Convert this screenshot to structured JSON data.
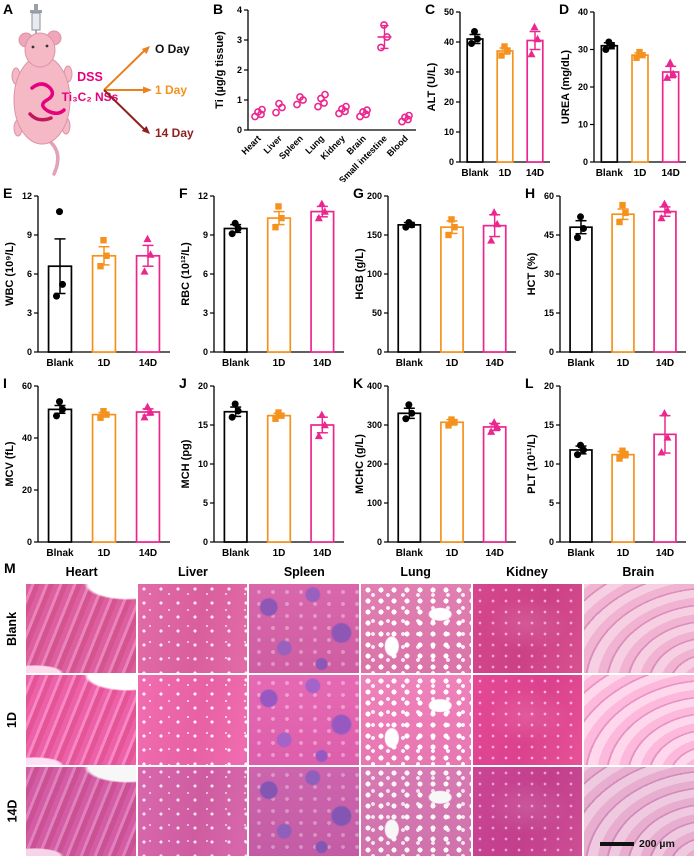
{
  "colors": {
    "magenta": "#E6007E",
    "blank": "#000000",
    "d1": "#F5921E",
    "d14": "#EC268F"
  },
  "groups": {
    "labels": [
      "Blank",
      "1D",
      "14D"
    ],
    "colors": [
      "#000000",
      "#F5921E",
      "#EC268F"
    ],
    "markers": [
      "circle",
      "square",
      "triangle"
    ]
  },
  "panelA": {
    "label": "A",
    "dss_label": "DSS",
    "nss_label": "Ti₃C₂ NSs",
    "arrow_colors": [
      "#E8821E",
      "#E8821E",
      "#8E1F1F"
    ],
    "timepoints": [
      {
        "label": "O Day",
        "color": "#111111"
      },
      {
        "label": "1 Day",
        "color": "#F5921E"
      },
      {
        "label": "14 Day",
        "color": "#8E1F1F"
      }
    ]
  },
  "chart_data": [
    {
      "letter": "B",
      "type": "scatter",
      "ylabel": "Ti (µg/g tissue)",
      "ylim": [
        0,
        4
      ],
      "yticks": [
        0,
        1,
        2,
        3,
        4
      ],
      "rotate_x": true,
      "categories": [
        "Heart",
        "Liver",
        "Spleen",
        "Lung",
        "Kidney",
        "Brain",
        "Small intestine",
        "Blood"
      ],
      "points": [
        [
          0.45,
          0.52,
          0.6,
          0.68
        ],
        [
          0.58,
          0.75,
          0.88
        ],
        [
          0.85,
          1.0,
          1.1
        ],
        [
          0.78,
          0.9,
          1.05,
          1.18
        ],
        [
          0.55,
          0.62,
          0.7,
          0.78
        ],
        [
          0.45,
          0.52,
          0.6,
          0.66
        ],
        [
          2.75,
          3.1,
          3.5
        ],
        [
          0.28,
          0.35,
          0.42,
          0.48
        ]
      ],
      "marker": "open-circle",
      "color": "#EC268F",
      "mean_lines": [
        {
          "index": 6,
          "mean": 3.1,
          "err": 0.38
        }
      ]
    },
    {
      "letter": "C",
      "type": "bar",
      "ylabel": "ALT (U/L)",
      "ylim": [
        0,
        50
      ],
      "yticks": [
        0,
        10,
        20,
        30,
        40,
        50
      ],
      "categories": [
        "Blank",
        "1D",
        "14D"
      ],
      "means": [
        41,
        37,
        40.5
      ],
      "errors": [
        1.5,
        1,
        3
      ],
      "points": [
        [
          39.5,
          41,
          43.5
        ],
        [
          35.5,
          37,
          38.5
        ],
        [
          36,
          41,
          45
        ]
      ]
    },
    {
      "letter": "D",
      "type": "bar",
      "ylabel": "UREA (mg/dL)",
      "ylim": [
        0,
        40
      ],
      "yticks": [
        0,
        10,
        20,
        30,
        40
      ],
      "categories": [
        "Blank",
        "1D",
        "14D"
      ],
      "means": [
        31,
        28.5,
        24
      ],
      "errors": [
        0.8,
        0.6,
        1.5
      ],
      "points": [
        [
          30,
          31,
          32
        ],
        [
          27.8,
          28.5,
          29.3
        ],
        [
          22.5,
          23.5,
          26.5
        ]
      ]
    },
    {
      "letter": "E",
      "type": "bar",
      "ylabel": "WBC (10⁹/L)",
      "ylim": [
        0,
        12
      ],
      "yticks": [
        0,
        3,
        6,
        9,
        12
      ],
      "categories": [
        "Blank",
        "1D",
        "14D"
      ],
      "means": [
        6.6,
        7.4,
        7.4
      ],
      "errors": [
        2.1,
        0.7,
        0.8
      ],
      "points": [
        [
          4.3,
          5.2,
          10.8
        ],
        [
          6.6,
          7.4,
          8.6
        ],
        [
          6.2,
          7.5,
          8.7
        ]
      ]
    },
    {
      "letter": "F",
      "type": "bar",
      "ylabel": "RBC (10¹²/L)",
      "ylim": [
        0,
        12
      ],
      "yticks": [
        0,
        3,
        6,
        9,
        12
      ],
      "categories": [
        "Blank",
        "1D",
        "14D"
      ],
      "means": [
        9.5,
        10.3,
        10.8
      ],
      "errors": [
        0.3,
        0.5,
        0.4
      ],
      "points": [
        [
          9.1,
          9.5,
          9.9
        ],
        [
          9.6,
          10.3,
          11.2
        ],
        [
          10.3,
          10.8,
          11.4
        ]
      ]
    },
    {
      "letter": "G",
      "type": "bar",
      "ylabel": "HGB (g/L)",
      "ylim": [
        0,
        200
      ],
      "yticks": [
        0,
        50,
        100,
        150,
        200
      ],
      "categories": [
        "Blank",
        "1D",
        "14D"
      ],
      "means": [
        163,
        160,
        162
      ],
      "errors": [
        3,
        8,
        14
      ],
      "points": [
        [
          160,
          163,
          166
        ],
        [
          150,
          160,
          170
        ],
        [
          143,
          164,
          179
        ]
      ]
    },
    {
      "letter": "H",
      "type": "bar",
      "ylabel": "HCT (%)",
      "ylim": [
        0,
        60
      ],
      "yticks": [
        0,
        15,
        30,
        45,
        60
      ],
      "categories": [
        "Blank",
        "1D",
        "14D"
      ],
      "means": [
        48,
        53,
        54
      ],
      "errors": [
        2.5,
        2,
        1.8
      ],
      "points": [
        [
          44,
          47.5,
          52
        ],
        [
          50,
          53.5,
          56.5
        ],
        [
          51.5,
          54.5,
          57
        ]
      ]
    },
    {
      "letter": "I",
      "type": "bar",
      "ylabel": "MCV (fL)",
      "ylim": [
        0,
        60
      ],
      "yticks": [
        0,
        20,
        40,
        60
      ],
      "categories": [
        "Blnak",
        "1D",
        "14D"
      ],
      "means": [
        51,
        49,
        50
      ],
      "errors": [
        1.5,
        0.8,
        1.2
      ],
      "points": [
        [
          48.5,
          51,
          54
        ],
        [
          47.8,
          49,
          50.3
        ],
        [
          48,
          50,
          52
        ]
      ]
    },
    {
      "letter": "J",
      "type": "bar",
      "ylabel": "MCH (pg)",
      "ylim": [
        0,
        20
      ],
      "yticks": [
        0,
        5,
        10,
        15,
        20
      ],
      "categories": [
        "Blank",
        "1D",
        "14D"
      ],
      "means": [
        16.7,
        16.2,
        15
      ],
      "errors": [
        0.6,
        0.3,
        1
      ],
      "points": [
        [
          16,
          16.8,
          17.7
        ],
        [
          15.8,
          16.2,
          16.6
        ],
        [
          13.6,
          15,
          16.3
        ]
      ]
    },
    {
      "letter": "K",
      "type": "bar",
      "ylabel": "MCHC (g/L)",
      "ylim": [
        0,
        400
      ],
      "yticks": [
        0,
        100,
        200,
        300,
        400
      ],
      "categories": [
        "Blank",
        "1D",
        "14D"
      ],
      "means": [
        330,
        307,
        295
      ],
      "errors": [
        13,
        7,
        9
      ],
      "points": [
        [
          316,
          330,
          352
        ],
        [
          299,
          307,
          314
        ],
        [
          283,
          295,
          307
        ]
      ]
    },
    {
      "letter": "L",
      "type": "bar",
      "ylabel": "PLT (10¹¹/L)",
      "ylim": [
        0,
        20
      ],
      "yticks": [
        0,
        5,
        10,
        15,
        20
      ],
      "categories": [
        "Blank",
        "1D",
        "14D"
      ],
      "means": [
        11.8,
        11.2,
        13.8
      ],
      "errors": [
        0.5,
        0.4,
        2.4
      ],
      "points": [
        [
          11.2,
          11.8,
          12.4
        ],
        [
          10.7,
          11.2,
          11.7
        ],
        [
          11.5,
          13.4,
          16.5
        ]
      ]
    }
  ],
  "panelM": {
    "label": "M",
    "columns": [
      "Heart",
      "Liver",
      "Spleen",
      "Lung",
      "Kidney",
      "Brain"
    ],
    "rows": [
      "Blank",
      "1D",
      "14D"
    ],
    "scalebar": "200 µm"
  }
}
